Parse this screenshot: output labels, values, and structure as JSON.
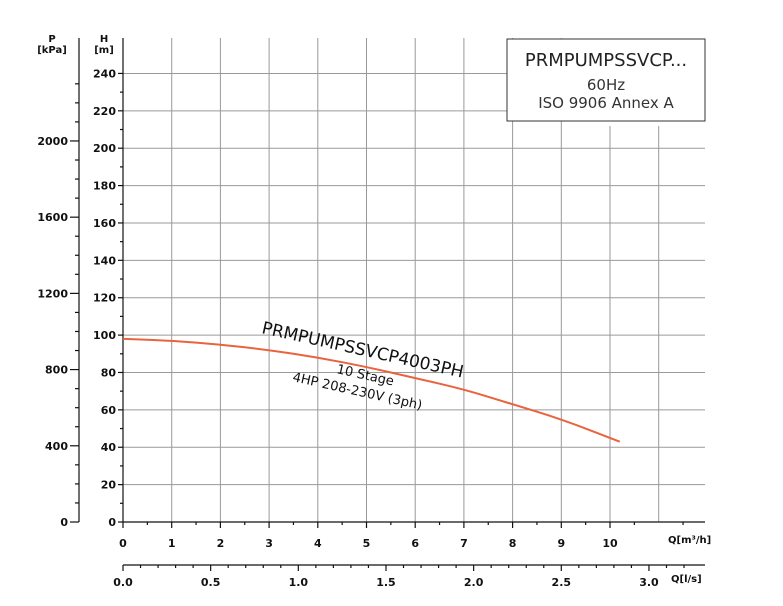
{
  "legend": {
    "title": "PRMPUMPSSVCP...",
    "line1": "60Hz",
    "line2": "ISO 9906 Annex A"
  },
  "axes": {
    "p_label_1": "P",
    "p_label_2": "[kPa]",
    "h_label_1": "H",
    "h_label_2": "[m]",
    "q_m3h_label": "Q[m³/h]",
    "q_ls_label": "Q[l/s]"
  },
  "curve_labels": {
    "model": "PRMPUMPSSVCP4003PH",
    "stages": "10 Stage",
    "power": "4HP 208-230V (3ph)"
  },
  "colors": {
    "curve": "#e8633e",
    "grid": "#9a9a9a",
    "axis": "#111111"
  },
  "chart_data": {
    "type": "line",
    "xlabel": "Q[m³/h]",
    "ylabel": "H [m]",
    "xlim": [
      0,
      12
    ],
    "ylim": [
      0,
      250
    ],
    "x_ticks": [
      0,
      1,
      2,
      3,
      4,
      5,
      6,
      7,
      8,
      9,
      10
    ],
    "y_ticks": [
      0,
      20,
      40,
      60,
      80,
      100,
      120,
      140,
      160,
      180,
      200,
      220,
      240
    ],
    "secondary_y": {
      "label": "P [kPa]",
      "ticks": [
        0,
        400,
        800,
        1200,
        1600,
        2000
      ]
    },
    "secondary_x": {
      "label": "Q[l/s]",
      "ticks": [
        "0.0",
        "0.5",
        "1.0",
        "1.5",
        "2.0",
        "2.5",
        "3.0"
      ]
    },
    "grid": true,
    "series": [
      {
        "name": "PRMPUMPSSVCP4003PH",
        "x": [
          0,
          1,
          2,
          3,
          4,
          5,
          6,
          7,
          8,
          9,
          10.2
        ],
        "y": [
          98,
          97,
          95,
          92,
          88,
          83,
          77,
          71,
          63,
          55,
          43
        ]
      }
    ]
  }
}
